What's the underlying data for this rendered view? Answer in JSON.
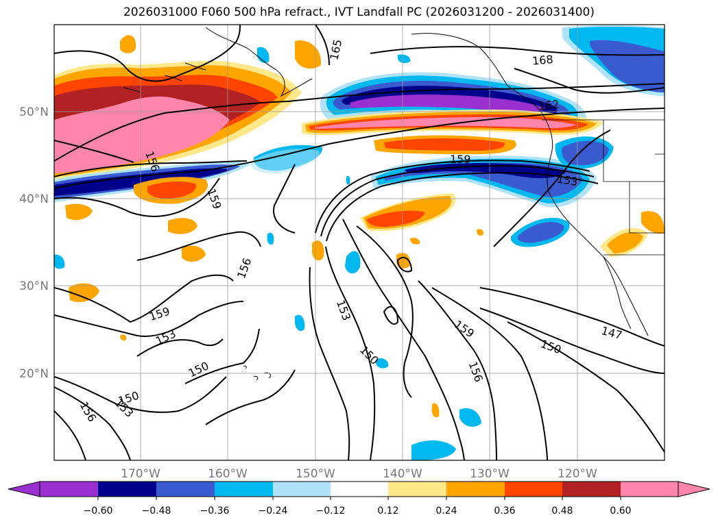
{
  "title": "2026031000 F060 500 hPa refract., IVT Landfall PC (2026031200 - 2026031400)",
  "lat_labels": [
    "50°N",
    "40°N",
    "30°N",
    "20°N"
  ],
  "lon_labels": [
    "170°W",
    "160°W",
    "150°W",
    "140°W",
    "130°W",
    "120°W"
  ],
  "contour_labels": [
    "165",
    "168",
    "162",
    "159",
    "156",
    "153",
    "150",
    "147"
  ],
  "colorbar": {
    "ticks": [
      "−0.60",
      "−0.48",
      "−0.36",
      "−0.24",
      "−0.12",
      "0.12",
      "0.24",
      "0.36",
      "0.48",
      "0.60"
    ],
    "colors": [
      "#9b30d0",
      "#00008b",
      "#3a5bd0",
      "#00b8f0",
      "#b0e2fa",
      "#ffffff",
      "#ffe88a",
      "#ffa500",
      "#ff4500",
      "#b22222",
      "#ff85aa"
    ]
  },
  "colors": {
    "neg_strong": "#00008b",
    "neg_purple": "#9b30d0",
    "neg_blue": "#3a5bd0",
    "neg_cyan": "#00b8f0",
    "neg_light": "#b0e2fa",
    "pos_yellow": "#ffe88a",
    "pos_orange": "#ffa500",
    "pos_red": "#ff4500",
    "pos_dark": "#b22222",
    "pos_pink": "#ff85aa"
  }
}
